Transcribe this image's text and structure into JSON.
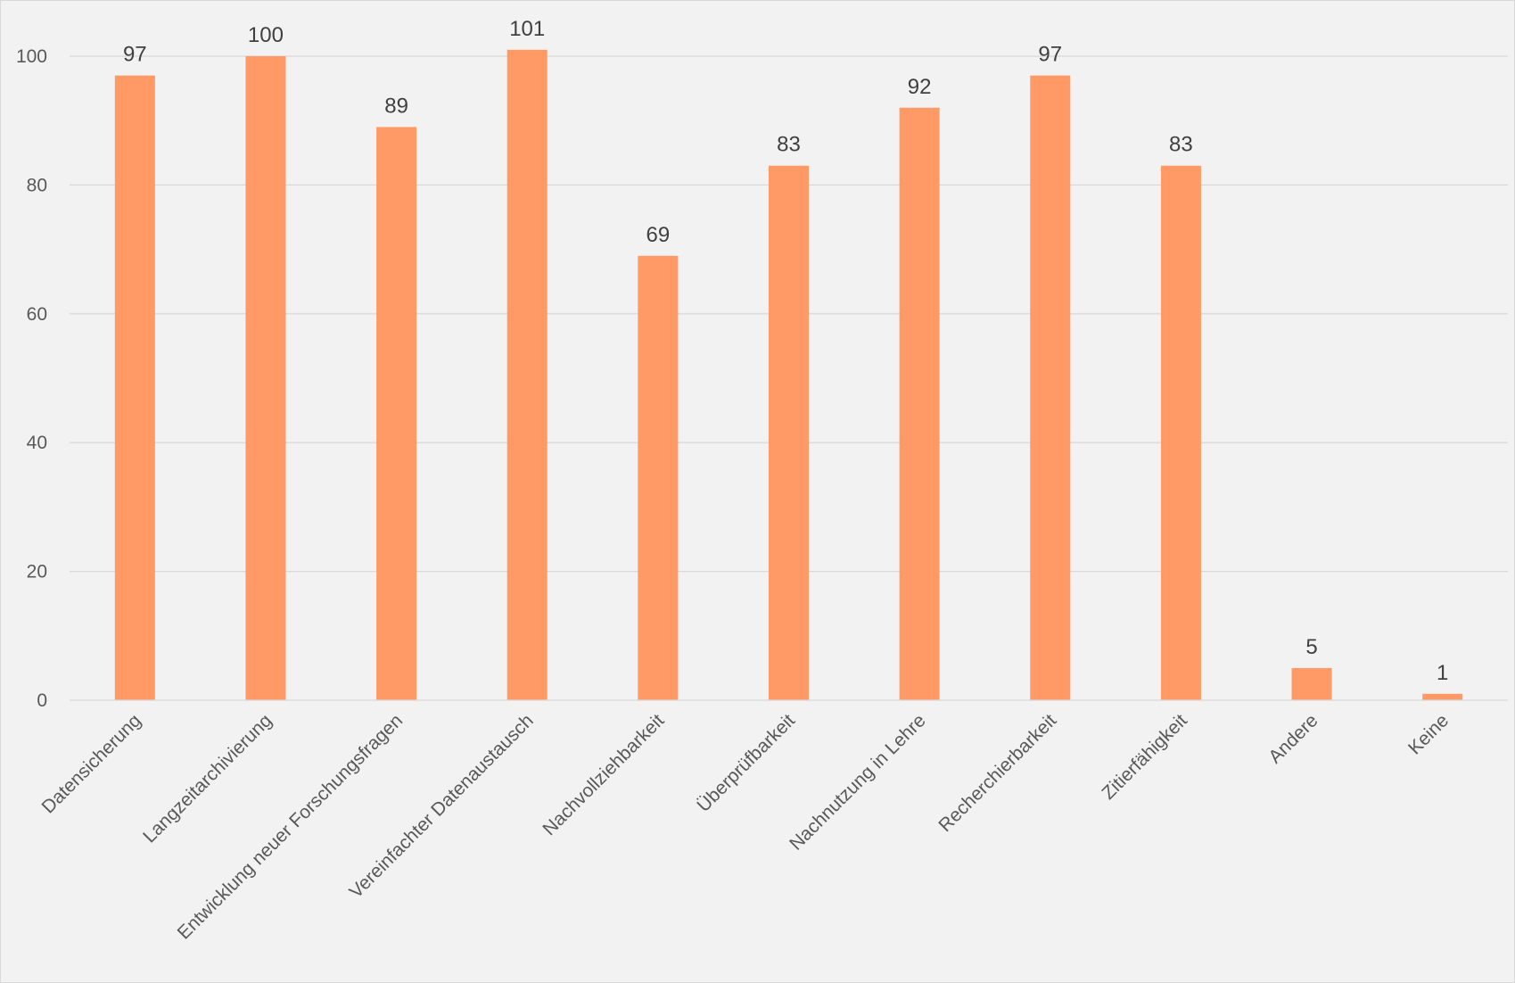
{
  "chart_data": {
    "type": "bar",
    "categories": [
      "Datensicherung",
      "Langzeitarchivierung",
      "Entwicklung neuer Forschungsfragen",
      "Vereinfachter Datenaustausch",
      "Nachvollziehbarkeit",
      "Überprüfbarkeit",
      "Nachnutzung in Lehre",
      "Recherchierbarkeit",
      "Zitierfähigkeit",
      "Andere",
      "Keine"
    ],
    "values": [
      97,
      100,
      89,
      101,
      69,
      83,
      92,
      97,
      83,
      5,
      1
    ],
    "ylim": [
      0,
      100
    ],
    "yticks": [
      0,
      20,
      40,
      60,
      80,
      100
    ],
    "grid": true,
    "data_labels": true,
    "bar_color": "#ff9966",
    "title": "",
    "xlabel": "",
    "ylabel": ""
  }
}
